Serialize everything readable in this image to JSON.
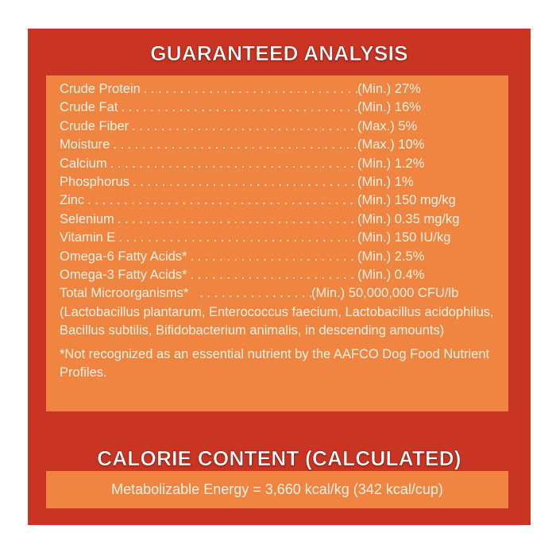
{
  "guaranteed_analysis": {
    "title": "GUARANTEED ANALYSIS",
    "rows": [
      {
        "label": "Crude Protein",
        "basis": "(Min.)",
        "value": "27%"
      },
      {
        "label": "Crude Fat",
        "basis": "(Min.)",
        "value": "16%"
      },
      {
        "label": "Crude Fiber",
        "basis": "(Max.)",
        "value": "5%"
      },
      {
        "label": "Moisture",
        "basis": "(Max.)",
        "value": "10%"
      },
      {
        "label": "Calcium",
        "basis": "(Min.)",
        "value": "1.2%"
      },
      {
        "label": "Phosphorus",
        "basis": "(Min.)",
        "value": "1%"
      },
      {
        "label": "Zinc",
        "basis": "(Min.)",
        "value": "150 mg/kg"
      },
      {
        "label": "Selenium",
        "basis": "(Min.)",
        "value": "0.35 mg/kg"
      },
      {
        "label": "Vitamin E",
        "basis": "(Min.)",
        "value": "150 IU/kg"
      },
      {
        "label": "Omega-6 Fatty Acids*",
        "basis": "(Min.)",
        "value": "2.5%"
      },
      {
        "label": "Omega-3 Fatty Acids*",
        "basis": "(Min.)",
        "value": "0.4%"
      },
      {
        "label": "Total Microorganisms*",
        "basis": "(Min.)",
        "value": "50,000,000 CFU/lb"
      }
    ],
    "microorganisms_detail": "(Lactobacillus plantarum, Enterococcus faecium, Lactobacillus acidophilus, Bacillus subtilis, Bifidobacterium animalis, in descending amounts)",
    "footnote": "*Not recognized as an essential nutrient by the AAFCO Dog Food Nutrient Profiles."
  },
  "calorie_content": {
    "title": "CALORIE CONTENT (CALCULATED)",
    "energy": "Metabolizable Energy = 3,660 kcal/kg (342 kcal/cup)"
  },
  "colors": {
    "background_red": "#c93423",
    "panel_orange": "#f08541",
    "text": "#fdf1e4"
  }
}
